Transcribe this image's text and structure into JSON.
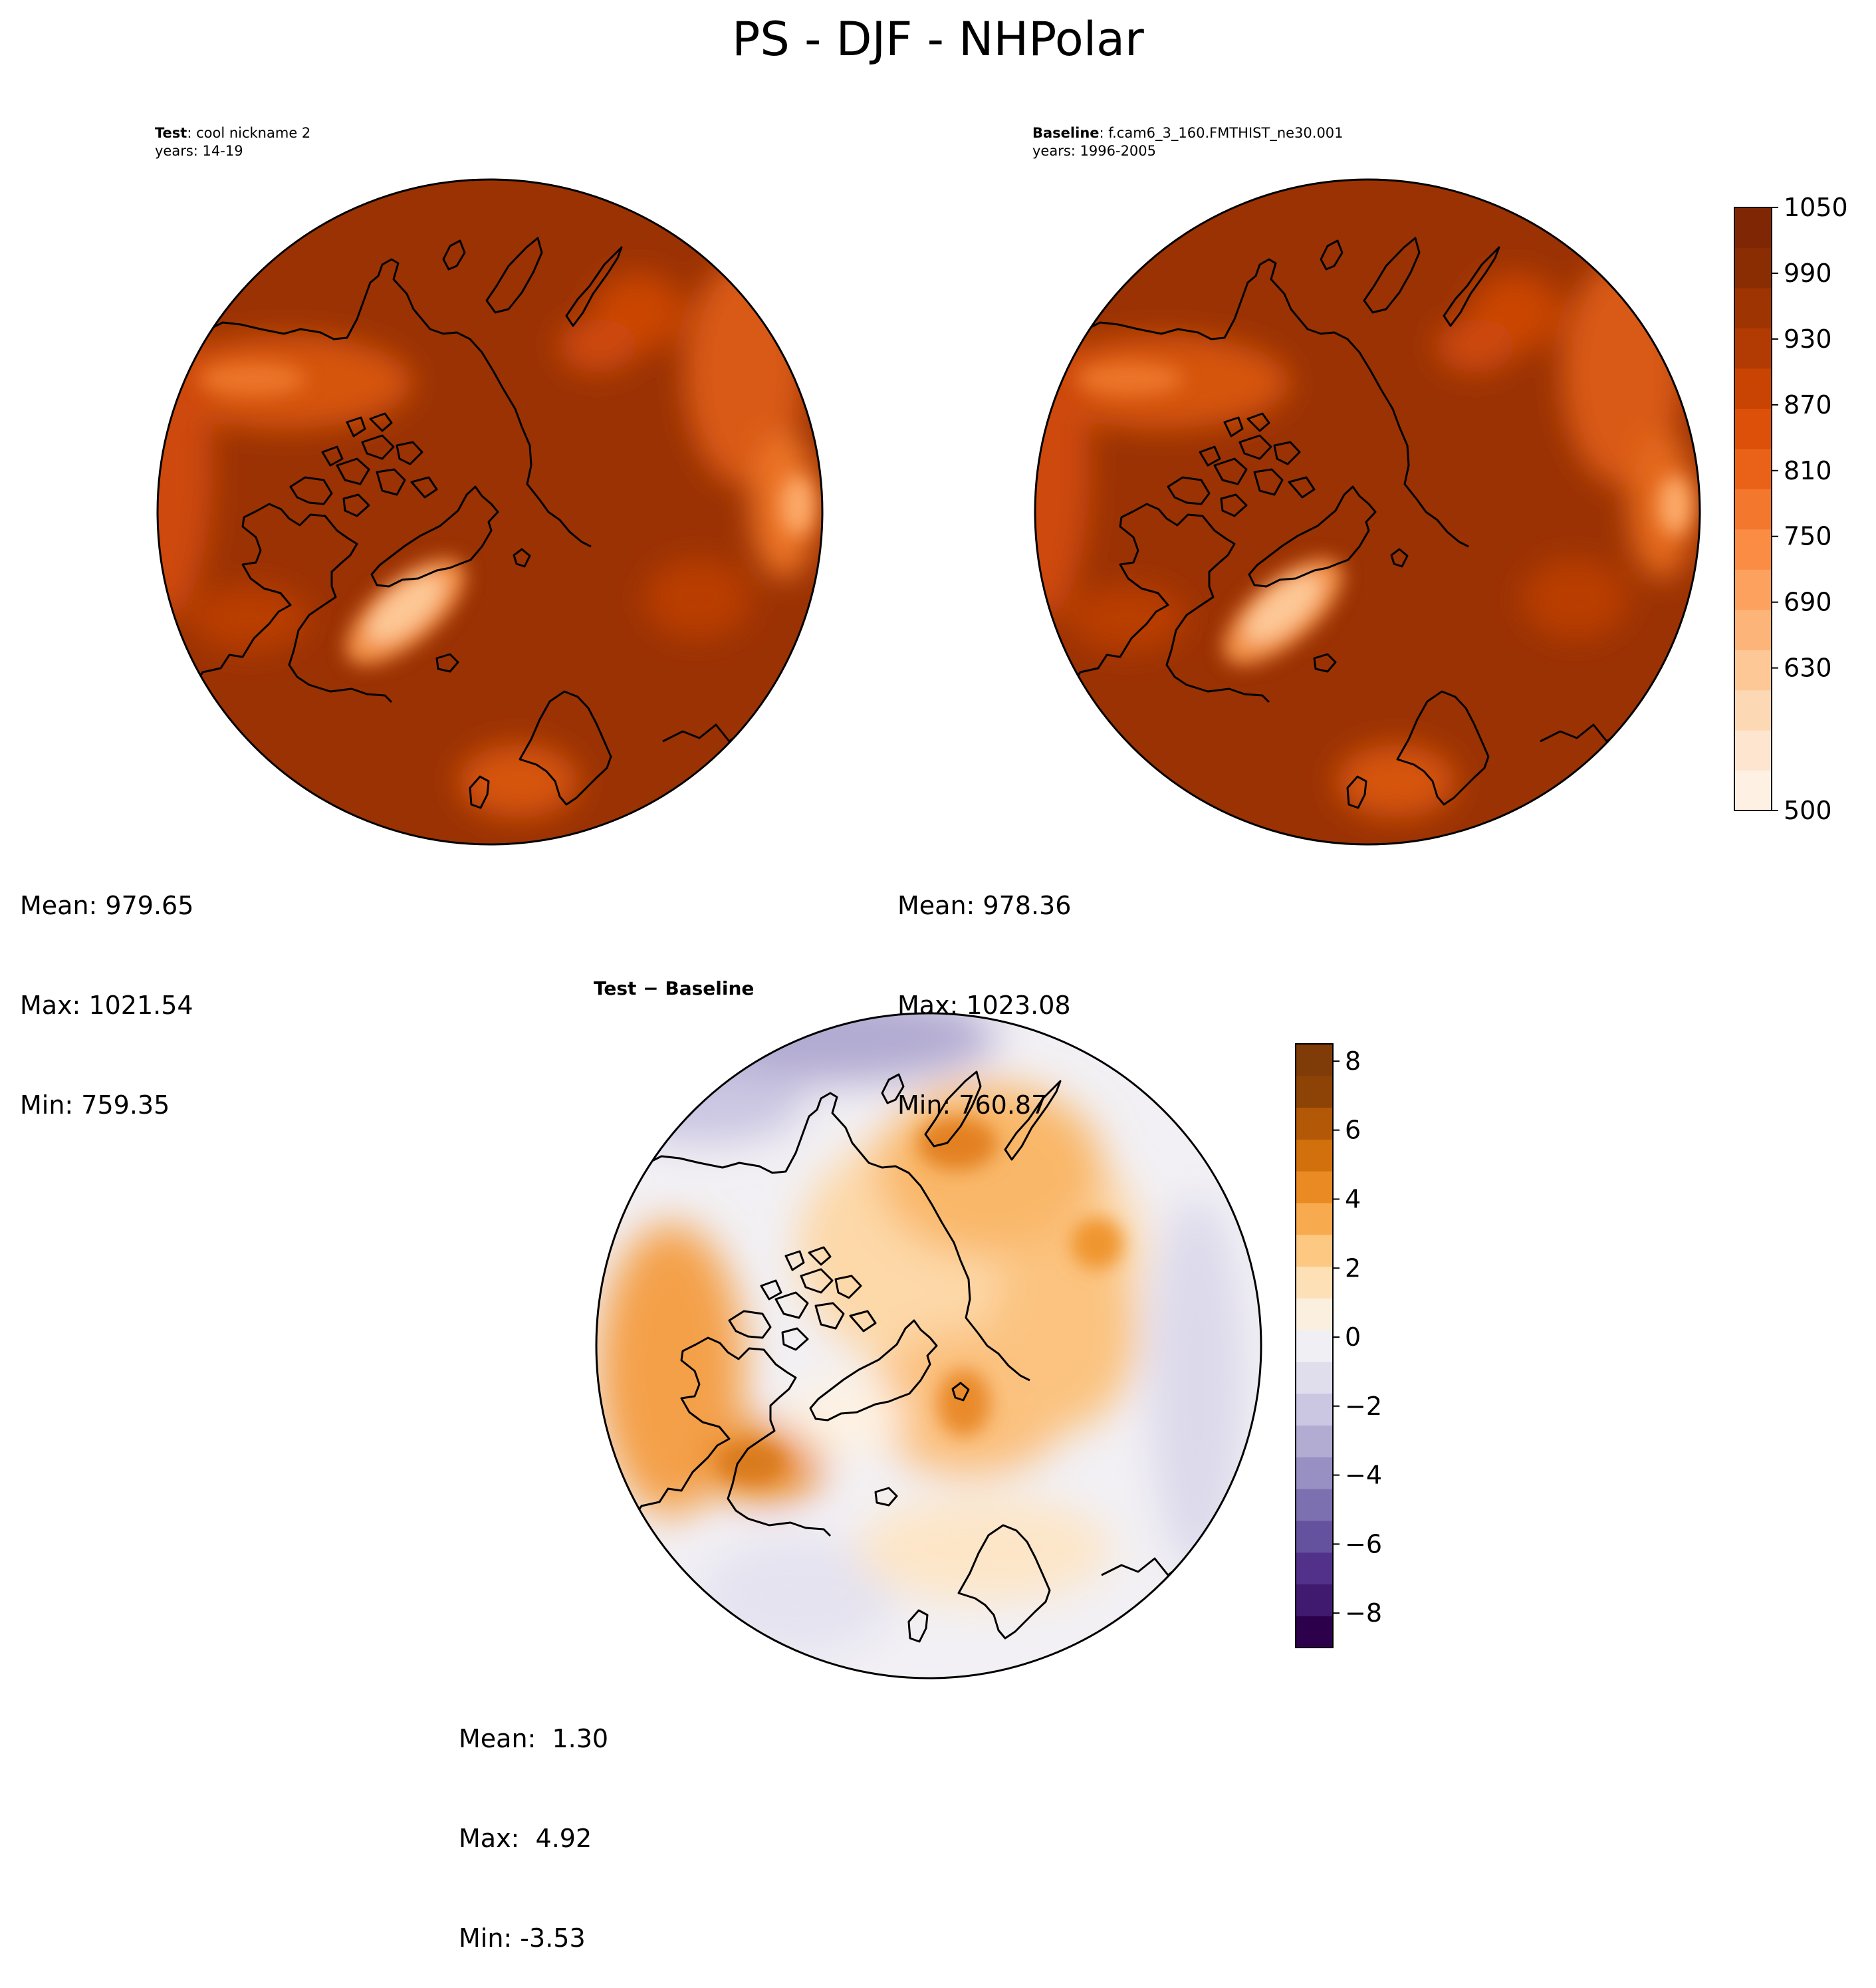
{
  "title": "PS - DJF - NHPolar",
  "panels": {
    "test": {
      "label_bold": "Test",
      "label_rest": ": cool nickname 2",
      "years": "years: 14-19",
      "mean": "Mean: 979.65",
      "max": "Max: 1021.54",
      "min": "Min: 759.35"
    },
    "baseline": {
      "label_bold": "Baseline",
      "label_rest": ": f.cam6_3_160.FMTHIST_ne30.001",
      "years": "years: 1996-2005",
      "mean": "Mean: 978.36",
      "max": "Max: 1023.08",
      "min": "Min: 760.87"
    },
    "diff": {
      "label_bold": "Test − Baseline",
      "mean": "Mean:  1.30",
      "max": "Max:  4.92",
      "min": "Min: -3.53"
    }
  },
  "chart_data": [
    {
      "type": "heatmap",
      "name": "Test",
      "projection": "north polar stereographic",
      "colormap": "Oranges",
      "stats": {
        "mean": 979.65,
        "max": 1021.54,
        "min": 759.35
      }
    },
    {
      "type": "heatmap",
      "name": "Baseline",
      "projection": "north polar stereographic",
      "colormap": "Oranges",
      "stats": {
        "mean": 978.36,
        "max": 1023.08,
        "min": 760.87
      },
      "colorbar": {
        "range": [
          500,
          1050
        ],
        "ticks": [
          500,
          630,
          690,
          750,
          810,
          870,
          930,
          990,
          1050
        ],
        "tick_labels": [
          "500",
          "630",
          "690",
          "750",
          "810",
          "870",
          "930",
          "990",
          "1050"
        ],
        "colors": [
          "#fff0e4",
          "#fee5d0",
          "#fdd8b4",
          "#fdc796",
          "#fdb478",
          "#fda15e",
          "#fa8c44",
          "#f4772e",
          "#ea6218",
          "#dc500a",
          "#c94403",
          "#b13b02",
          "#9e3402",
          "#8a2d03",
          "#7f2704"
        ]
      }
    },
    {
      "type": "heatmap",
      "name": "Test − Baseline",
      "projection": "north polar stereographic",
      "colormap": "PuOr_r",
      "stats": {
        "mean": 1.3,
        "max": 4.92,
        "min": -3.53
      },
      "colorbar": {
        "range": [
          -9,
          8.5
        ],
        "ticks": [
          -8,
          -6,
          -4,
          -2,
          0,
          2,
          4,
          6,
          8
        ],
        "tick_labels": [
          "−8",
          "−6",
          "−4",
          "−2",
          "0",
          "2",
          "4",
          "6",
          "8"
        ],
        "colors": [
          "#2d004b",
          "#3f1a6e",
          "#51318a",
          "#65529e",
          "#7d70b0",
          "#988fc2",
          "#b2abd2",
          "#cbc6e2",
          "#e0dded",
          "#f0eff4",
          "#fbefe0",
          "#fee0b6",
          "#fdc882",
          "#f8ab4e",
          "#e98a22",
          "#d1700c",
          "#b35806",
          "#8e4306",
          "#7f3b08"
        ]
      }
    }
  ]
}
